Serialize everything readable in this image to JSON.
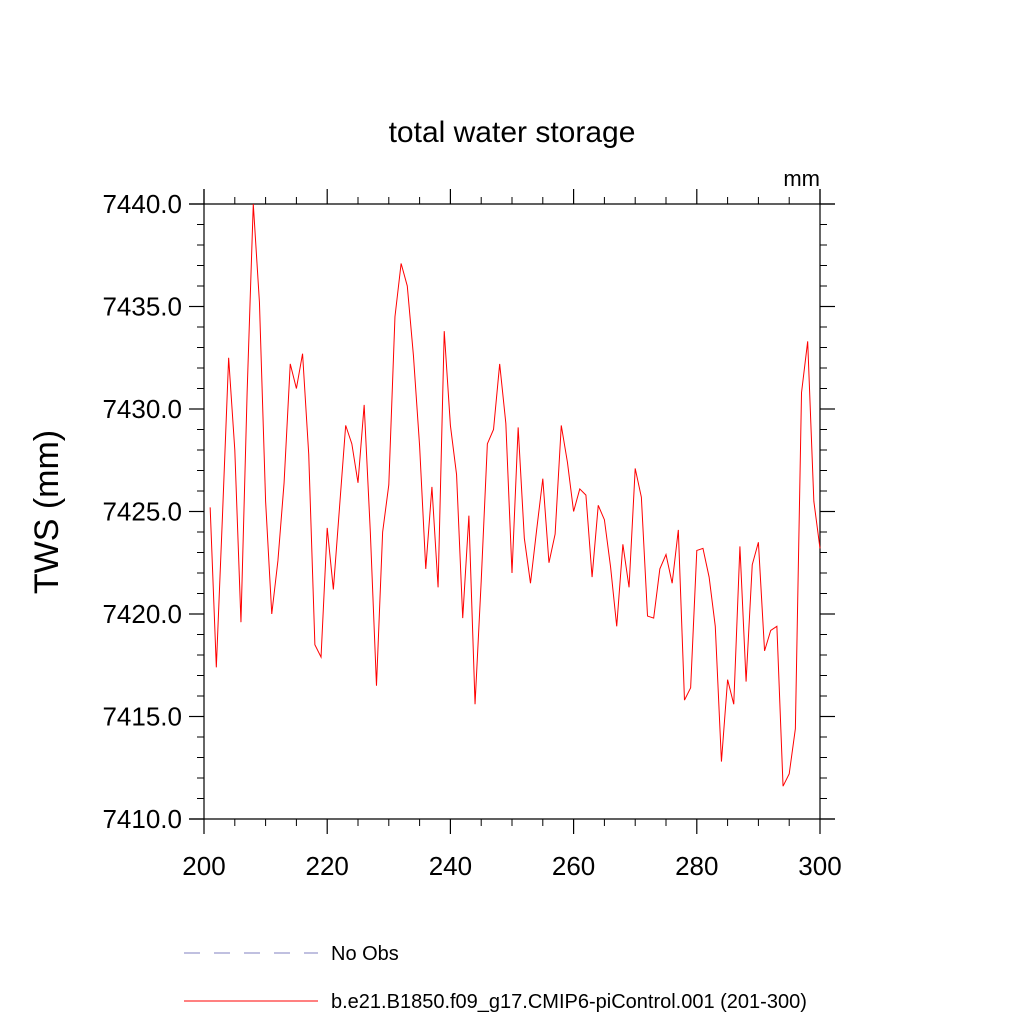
{
  "chart_data": {
    "type": "line",
    "title": "total water storage",
    "units_label": "mm",
    "xlabel": "",
    "ylabel": "TWS  (mm)",
    "xlim": [
      200,
      300
    ],
    "ylim": [
      7410,
      7440
    ],
    "x_ticks": [
      200,
      220,
      240,
      260,
      280,
      300
    ],
    "x_tick_labels": [
      "200",
      "220",
      "240",
      "260",
      "280",
      "300"
    ],
    "y_ticks": [
      7410,
      7415,
      7420,
      7425,
      7430,
      7435,
      7440
    ],
    "y_tick_labels": [
      "7410.0",
      "7415.0",
      "7420.0",
      "7425.0",
      "7430.0",
      "7435.0",
      "7440.0"
    ],
    "grid": false,
    "legend_position": "bottom",
    "series": [
      {
        "name": "No Obs",
        "color": "#8080c0",
        "style": "dashed",
        "x": [],
        "values": []
      },
      {
        "name": "b.e21.B1850.f09_g17.CMIP6-piControl.001 (201-300)",
        "color": "#ff0000",
        "style": "solid",
        "x": [
          201,
          202,
          203,
          204,
          205,
          206,
          207,
          208,
          209,
          210,
          211,
          212,
          213,
          214,
          215,
          216,
          217,
          218,
          219,
          220,
          221,
          222,
          223,
          224,
          225,
          226,
          227,
          228,
          229,
          230,
          231,
          232,
          233,
          234,
          235,
          236,
          237,
          238,
          239,
          240,
          241,
          242,
          243,
          244,
          245,
          246,
          247,
          248,
          249,
          250,
          251,
          252,
          253,
          254,
          255,
          256,
          257,
          258,
          259,
          260,
          261,
          262,
          263,
          264,
          265,
          266,
          267,
          268,
          269,
          270,
          271,
          272,
          273,
          274,
          275,
          276,
          277,
          278,
          279,
          280,
          281,
          282,
          283,
          284,
          285,
          286,
          287,
          288,
          289,
          290,
          291,
          292,
          293,
          294,
          295,
          296,
          297,
          298,
          299,
          300
        ],
        "values": [
          7425.2,
          7417.4,
          7424.8,
          7432.5,
          7428.0,
          7419.6,
          7430.8,
          7440.0,
          7435.2,
          7425.5,
          7420.0,
          7422.6,
          7426.4,
          7432.2,
          7431.0,
          7432.7,
          7427.8,
          7418.5,
          7417.9,
          7424.2,
          7421.2,
          7425.2,
          7429.2,
          7428.3,
          7426.4,
          7430.2,
          7424.0,
          7416.5,
          7424.0,
          7426.3,
          7434.5,
          7437.1,
          7436.0,
          7432.6,
          7428.2,
          7422.2,
          7426.2,
          7421.3,
          7433.8,
          7429.2,
          7426.8,
          7419.8,
          7424.8,
          7415.6,
          7421.6,
          7428.3,
          7429.0,
          7432.2,
          7429.3,
          7422.0,
          7429.1,
          7423.7,
          7421.5,
          7424.1,
          7426.6,
          7422.5,
          7423.9,
          7429.2,
          7427.4,
          7425.0,
          7426.1,
          7425.8,
          7421.8,
          7425.3,
          7424.6,
          7422.3,
          7419.4,
          7423.4,
          7421.3,
          7427.1,
          7425.7,
          7419.9,
          7419.8,
          7422.2,
          7422.9,
          7421.5,
          7424.1,
          7415.8,
          7416.4,
          7423.1,
          7423.2,
          7421.8,
          7419.4,
          7412.8,
          7416.8,
          7415.6,
          7423.3,
          7416.7,
          7422.4,
          7423.5,
          7418.2,
          7419.2,
          7419.4,
          7411.6,
          7412.2,
          7414.4,
          7430.8,
          7433.3,
          7425.5,
          7423.2
        ]
      }
    ]
  }
}
